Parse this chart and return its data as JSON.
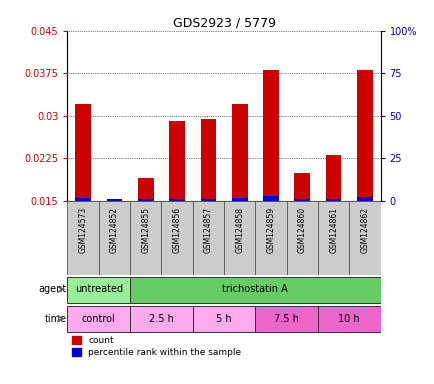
{
  "title": "GDS2923 / 5779",
  "samples": [
    "GSM124573",
    "GSM124852",
    "GSM124855",
    "GSM124856",
    "GSM124857",
    "GSM124858",
    "GSM124859",
    "GSM124860",
    "GSM124861",
    "GSM124862"
  ],
  "count_values": [
    0.032,
    0.015,
    0.019,
    0.029,
    0.0295,
    0.032,
    0.038,
    0.02,
    0.023,
    0.038
  ],
  "percentile_values": [
    0.0155,
    0.0153,
    0.0153,
    0.0154,
    0.0154,
    0.0155,
    0.0158,
    0.0153,
    0.0154,
    0.0157
  ],
  "ylim_left": [
    0.015,
    0.045
  ],
  "ylim_right": [
    0,
    100
  ],
  "yticks_left": [
    0.015,
    0.0225,
    0.03,
    0.0375,
    0.045
  ],
  "yticks_left_labels": [
    "0.015",
    "0.0225",
    "0.03",
    "0.0375",
    "0.045"
  ],
  "yticks_right": [
    0,
    25,
    50,
    75,
    100
  ],
  "yticks_right_labels": [
    "0",
    "25",
    "50",
    "75",
    "100%"
  ],
  "count_color": "#cc0000",
  "percentile_color": "#0000cc",
  "bar_width": 0.5,
  "agent_row": [
    {
      "label": "untreated",
      "start": 0,
      "end": 2,
      "color": "#99ee99"
    },
    {
      "label": "trichostatin A",
      "start": 2,
      "end": 10,
      "color": "#66cc66"
    }
  ],
  "time_row": [
    {
      "label": "control",
      "start": 0,
      "end": 2,
      "color": "#ffaaee"
    },
    {
      "label": "2.5 h",
      "start": 2,
      "end": 4,
      "color": "#ffaaee"
    },
    {
      "label": "5 h",
      "start": 4,
      "end": 6,
      "color": "#ffaaee"
    },
    {
      "label": "7.5 h",
      "start": 6,
      "end": 8,
      "color": "#ee66cc"
    },
    {
      "label": "10 h",
      "start": 8,
      "end": 10,
      "color": "#ee66cc"
    }
  ],
  "ylabel_left_color": "#cc0000",
  "ylabel_right_color": "#0000cc",
  "background_color": "#ffffff",
  "sample_box_color": "#cccccc",
  "grid_color": "#000000"
}
